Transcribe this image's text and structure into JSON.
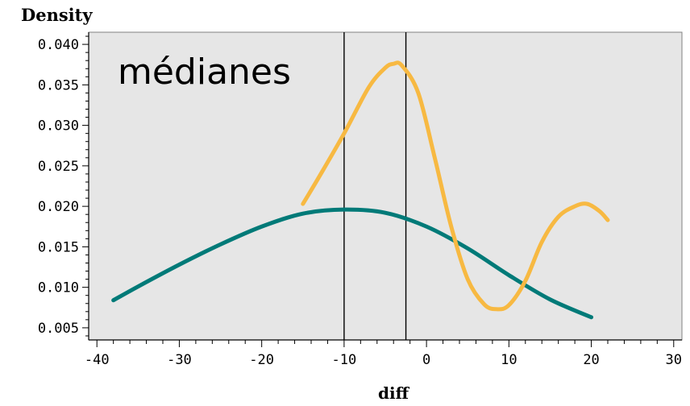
{
  "chart_data": {
    "type": "line",
    "title": "",
    "xlabel": "diff",
    "ylabel": "Density",
    "annotation": "médianes",
    "xlim": [
      -41,
      31
    ],
    "ylim": [
      0.0035,
      0.0415
    ],
    "x_ticks": [
      -40,
      -30,
      -20,
      -10,
      0,
      10,
      20,
      30
    ],
    "x_tick_labels": [
      "-40",
      "-30",
      "-20",
      "-10",
      "0",
      "10",
      "20",
      "30"
    ],
    "y_ticks": [
      0.005,
      0.01,
      0.015,
      0.02,
      0.025,
      0.03,
      0.035,
      0.04
    ],
    "y_tick_labels": [
      "0.005",
      "0.010",
      "0.015",
      "0.020",
      "0.025",
      "0.030",
      "0.035",
      "0.040"
    ],
    "vertical_lines": [
      -10,
      -2.5
    ],
    "grid": false,
    "plot_background": "#e6e6e6",
    "series": [
      {
        "color": "#007a78",
        "x": [
          -38,
          -35,
          -30,
          -25,
          -20,
          -15,
          -10,
          -5,
          0,
          5,
          10,
          15,
          20
        ],
        "y": [
          0.0084,
          0.0101,
          0.0128,
          0.0153,
          0.0175,
          0.0191,
          0.0196,
          0.0192,
          0.0175,
          0.0148,
          0.0115,
          0.0085,
          0.0063
        ]
      },
      {
        "color": "#f7b942",
        "x": [
          -15,
          -13,
          -10,
          -7,
          -5,
          -4,
          -3,
          -1,
          1,
          3,
          5,
          7,
          8.5,
          10,
          12,
          14,
          16,
          18,
          19.5,
          21,
          22
        ],
        "y": [
          0.0203,
          0.0237,
          0.029,
          0.0347,
          0.0371,
          0.0376,
          0.0374,
          0.034,
          0.026,
          0.0175,
          0.011,
          0.0079,
          0.0073,
          0.0078,
          0.0108,
          0.0156,
          0.0187,
          0.02,
          0.0203,
          0.0194,
          0.0183
        ]
      }
    ]
  }
}
